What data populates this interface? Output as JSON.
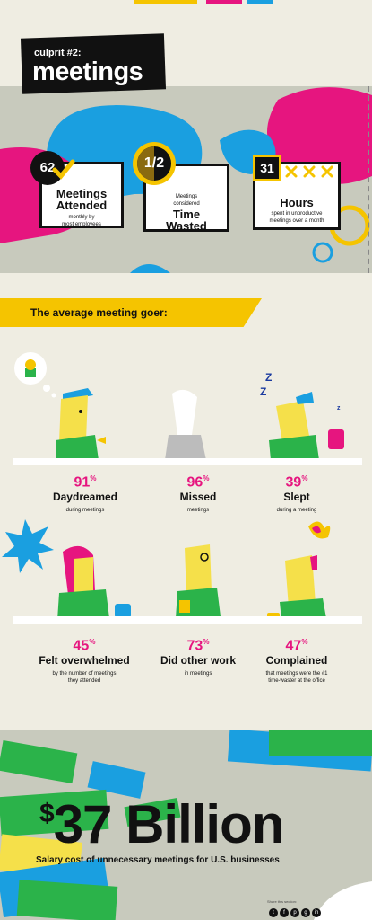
{
  "header": {
    "prefix": "culprit #2:",
    "title": "meetings"
  },
  "stats_cards": [
    {
      "badge": "62",
      "title_line1": "Meetings",
      "title_line2": "Attended",
      "sub_line1": "monthly by",
      "sub_line2": "most employees"
    },
    {
      "badge": "1/2",
      "pre_line1": "Meetings",
      "pre_line2": "considered",
      "title_line1": "Time",
      "title_line2": "Wasted"
    },
    {
      "badge": "31",
      "title_line1": "Hours",
      "sub_line1": "spent in unproductive",
      "sub_line2": "meetings over a month"
    }
  ],
  "banner": {
    "text": "The average meeting goer:"
  },
  "meeting_goer_stats": [
    {
      "value": "91",
      "unit": "%",
      "label": "Daydreamed",
      "sub_line1": "during meetings",
      "sub_line2": ""
    },
    {
      "value": "96",
      "unit": "%",
      "label": "Missed",
      "sub_line1": "meetings",
      "sub_line2": ""
    },
    {
      "value": "39",
      "unit": "%",
      "label": "Slept",
      "sub_line1": "during a meeting",
      "sub_line2": ""
    },
    {
      "value": "45",
      "unit": "%",
      "label": "Felt overwhelmed",
      "sub_line1": "by the number of meetings",
      "sub_line2": "they attended"
    },
    {
      "value": "73",
      "unit": "%",
      "label": "Did other work",
      "sub_line1": "in meetings",
      "sub_line2": ""
    },
    {
      "value": "47",
      "unit": "%",
      "label": "Complained",
      "sub_line1": "that meetings were the #1",
      "sub_line2": "time-waster at the office"
    }
  ],
  "footer": {
    "currency": "$",
    "amount": "37 Billion",
    "caption": "Salary cost of unnecessary meetings for U.S. businesses",
    "share_text": "Share this section:"
  },
  "colors": {
    "yellow": "#f5c400",
    "pink": "#e6157f",
    "blue": "#1a9fe0",
    "green": "#2bb34a",
    "black": "#111111",
    "gray_bg": "#c8cabd",
    "cream_bg": "#efede2"
  }
}
